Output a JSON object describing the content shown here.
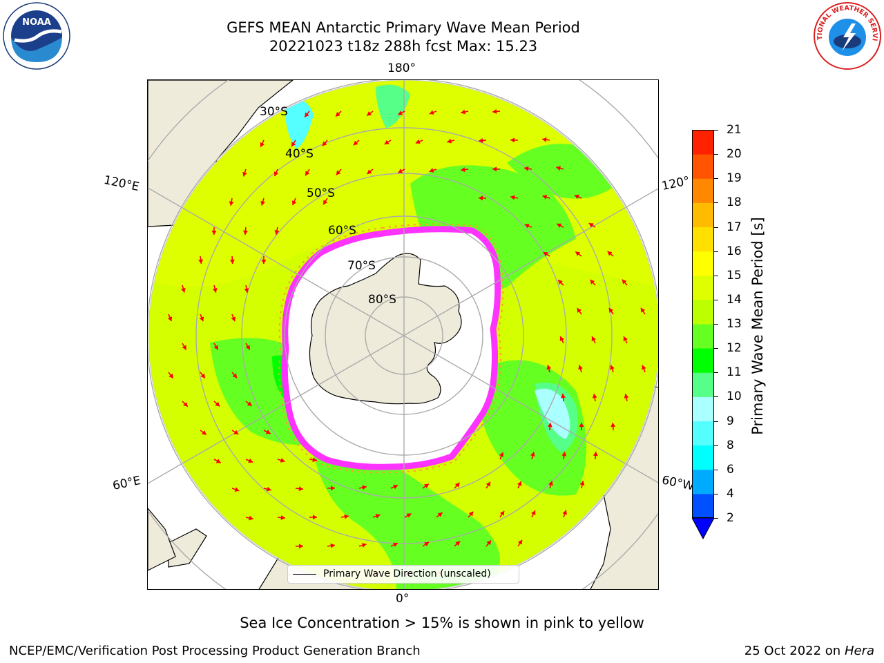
{
  "header": {
    "title_line1": "GEFS MEAN Antarctic Primary Wave Mean Period",
    "title_line2": "20221023 t18z 288h fcst   Max: 15.23"
  },
  "map": {
    "projection": "south-polar-stereographic",
    "lat_labels": [
      "30°S",
      "40°S",
      "50°S",
      "60°S",
      "70°S",
      "80°S"
    ],
    "lon_labels": {
      "top": "180°",
      "bottom": "0°",
      "upper_left": "120°E",
      "lower_left": "60°E",
      "upper_right": "120°",
      "lower_right": "60°W"
    },
    "colors": {
      "land": "#efebdb",
      "ice_shelf": "#ffffff",
      "sea_ice_edge": "#ff33ff",
      "arrow": "#ff0000",
      "grid": "#aaaaaa"
    }
  },
  "colorbar": {
    "label": "Primary Wave Mean Period [s]",
    "ticks": [
      "2",
      "4",
      "6",
      "8",
      "9",
      "10",
      "11",
      "12",
      "13",
      "14",
      "15",
      "16",
      "17",
      "18",
      "19",
      "20",
      "21"
    ],
    "colors": [
      "#0050ff",
      "#00aaff",
      "#00ffff",
      "#55ffff",
      "#aaffff",
      "#55ff88",
      "#00ff00",
      "#66ff22",
      "#bbff00",
      "#ddff00",
      "#ffff00",
      "#ffe000",
      "#ffbb00",
      "#ff8800",
      "#ff5500",
      "#ff2200"
    ],
    "extend_color": "#0000ff"
  },
  "legend": {
    "label": "Primary Wave Direction (unscaled)"
  },
  "note": "Sea Ice Concentration > 15% is shown in pink to yellow",
  "footer": {
    "left": "NCEP/EMC/Verification Post Processing Product Generation Branch",
    "right_date": "25 Oct 2022 on ",
    "right_machine": "Hera"
  },
  "logos": {
    "left": "NOAA",
    "right": "NATIONAL WEATHER SERVICE"
  }
}
